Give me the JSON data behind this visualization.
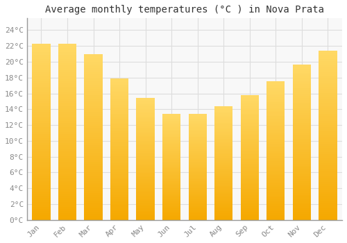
{
  "months": [
    "Jan",
    "Feb",
    "Mar",
    "Apr",
    "May",
    "Jun",
    "Jul",
    "Aug",
    "Sep",
    "Oct",
    "Nov",
    "Dec"
  ],
  "values": [
    22.3,
    22.3,
    21.0,
    17.9,
    15.4,
    13.4,
    13.4,
    14.4,
    15.8,
    17.5,
    19.6,
    21.4
  ],
  "bar_color_bottom": "#F5A800",
  "bar_color_top": "#FFD966",
  "title": "Average monthly temperatures (°C ) in Nova Prata",
  "ytick_labels": [
    "0°C",
    "2°C",
    "4°C",
    "6°C",
    "8°C",
    "10°C",
    "12°C",
    "14°C",
    "16°C",
    "18°C",
    "20°C",
    "22°C",
    "24°C"
  ],
  "ytick_values": [
    0,
    2,
    4,
    6,
    8,
    10,
    12,
    14,
    16,
    18,
    20,
    22,
    24
  ],
  "ylim": [
    0,
    25.5
  ],
  "background_color": "#ffffff",
  "plot_bg_color": "#f8f8f8",
  "grid_color": "#dddddd",
  "title_fontsize": 10,
  "tick_fontsize": 8,
  "title_color": "#333333",
  "tick_color": "#888888",
  "font_family": "monospace",
  "bar_width": 0.7
}
